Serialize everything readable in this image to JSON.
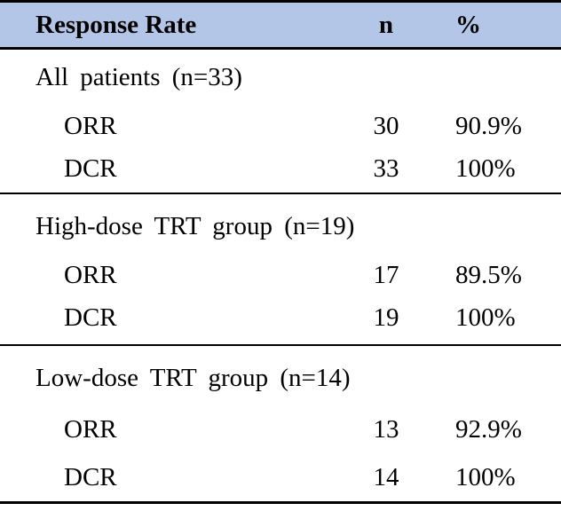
{
  "table": {
    "header": {
      "label": "Response Rate",
      "n": "n",
      "pct": "%"
    },
    "colors": {
      "header_bg": "#b4c6e7",
      "border": "#000000",
      "text": "#000000"
    },
    "sections": [
      {
        "group": "All patients (n=33)",
        "rows": [
          {
            "label": "ORR",
            "n": "30",
            "pct": "90.9%"
          },
          {
            "label": "DCR",
            "n": "33",
            "pct": "100%"
          }
        ]
      },
      {
        "group": "High-dose TRT group (n=19)",
        "rows": [
          {
            "label": "ORR",
            "n": "17",
            "pct": "89.5%"
          },
          {
            "label": "DCR",
            "n": "19",
            "pct": "100%"
          }
        ]
      },
      {
        "group": "Low-dose TRT group (n=14)",
        "rows": [
          {
            "label": "ORR",
            "n": "13",
            "pct": "92.9%"
          },
          {
            "label": "DCR",
            "n": "14",
            "pct": "100%"
          }
        ]
      }
    ]
  }
}
